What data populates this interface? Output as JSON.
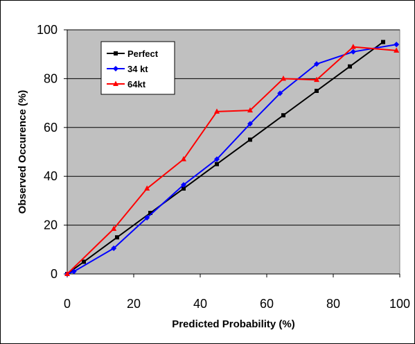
{
  "chart_data": {
    "type": "line",
    "title": "",
    "xlabel": "Predicted Probability (%)",
    "ylabel": "Observed Occurence (%)",
    "xlim": [
      0,
      100
    ],
    "ylim": [
      0,
      100
    ],
    "xticks": [
      0,
      20,
      40,
      60,
      80,
      100
    ],
    "yticks": [
      0,
      20,
      40,
      60,
      80,
      100
    ],
    "grid": "horizontal",
    "background": "#c0c0c0",
    "legend_position": "top-left",
    "series": [
      {
        "name": "Perfect",
        "color": "#000000",
        "marker": "square",
        "points": [
          [
            0,
            0
          ],
          [
            5,
            5
          ],
          [
            15,
            15
          ],
          [
            25,
            25
          ],
          [
            35,
            35
          ],
          [
            45,
            45
          ],
          [
            55,
            55
          ],
          [
            65,
            65
          ],
          [
            75,
            75
          ],
          [
            85,
            85
          ],
          [
            95,
            95
          ]
        ]
      },
      {
        "name": "34 kt",
        "color": "#0000ff",
        "marker": "diamond",
        "points": [
          [
            0,
            0
          ],
          [
            2,
            1
          ],
          [
            14,
            10.5
          ],
          [
            24,
            23
          ],
          [
            35,
            36.5
          ],
          [
            45,
            47
          ],
          [
            55,
            61.5
          ],
          [
            64,
            74
          ],
          [
            75,
            86
          ],
          [
            86,
            91
          ],
          [
            99,
            94
          ]
        ]
      },
      {
        "name": "64kt",
        "color": "#ff0000",
        "marker": "triangle",
        "points": [
          [
            0,
            0
          ],
          [
            14,
            18.5
          ],
          [
            24,
            35
          ],
          [
            35,
            47
          ],
          [
            45,
            66.5
          ],
          [
            55,
            67
          ],
          [
            65,
            80
          ],
          [
            75,
            79.5
          ],
          [
            86,
            93
          ],
          [
            99,
            91.5
          ]
        ]
      }
    ]
  }
}
